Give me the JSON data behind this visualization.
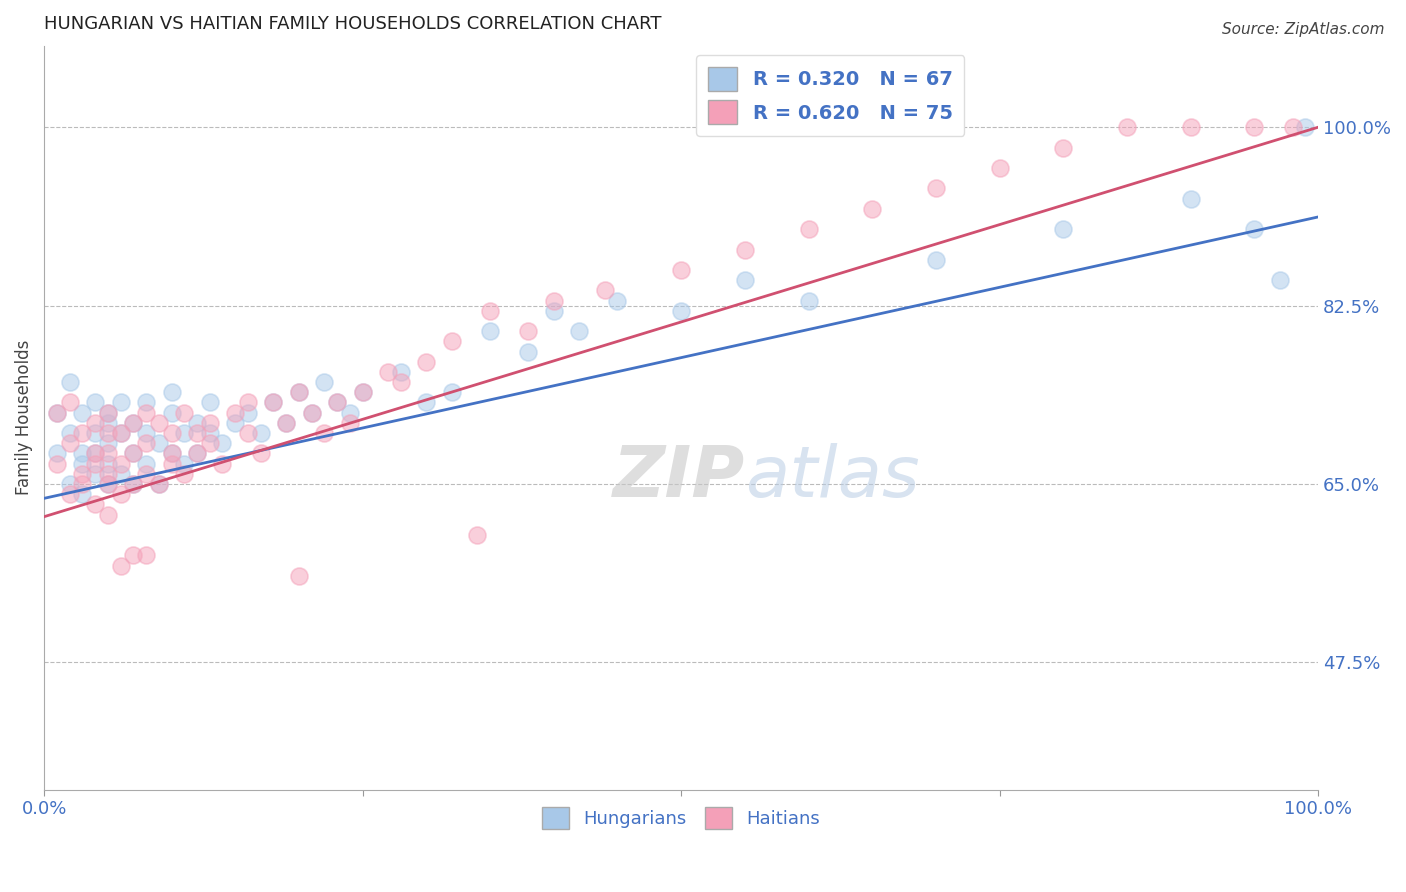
{
  "title": "HUNGARIAN VS HAITIAN FAMILY HOUSEHOLDS CORRELATION CHART",
  "source": "Source: ZipAtlas.com",
  "ylabel": "Family Households",
  "xlim": [
    0.0,
    1.0
  ],
  "ylim": [
    0.35,
    1.08
  ],
  "yticks": [
    0.475,
    0.65,
    0.825,
    1.0
  ],
  "ytick_labels": [
    "47.5%",
    "65.0%",
    "82.5%",
    "100.0%"
  ],
  "xticks": [
    0.0,
    0.25,
    0.5,
    0.75,
    1.0
  ],
  "blue_R": 0.32,
  "blue_N": 67,
  "pink_R": 0.62,
  "pink_N": 75,
  "blue_color": "#a8c8e8",
  "pink_color": "#f4a0b8",
  "blue_line_color": "#4472c4",
  "pink_line_color": "#d05070",
  "tick_label_color": "#4472c4",
  "title_color": "#222222",
  "watermark": "ZIPatlas",
  "background_color": "#ffffff",
  "blue_scatter_x": [
    0.01,
    0.01,
    0.02,
    0.02,
    0.02,
    0.03,
    0.03,
    0.03,
    0.03,
    0.04,
    0.04,
    0.04,
    0.04,
    0.05,
    0.05,
    0.05,
    0.05,
    0.05,
    0.06,
    0.06,
    0.06,
    0.07,
    0.07,
    0.07,
    0.08,
    0.08,
    0.08,
    0.09,
    0.09,
    0.1,
    0.1,
    0.1,
    0.11,
    0.11,
    0.12,
    0.12,
    0.13,
    0.13,
    0.14,
    0.15,
    0.16,
    0.17,
    0.18,
    0.19,
    0.2,
    0.21,
    0.22,
    0.23,
    0.24,
    0.25,
    0.28,
    0.3,
    0.32,
    0.35,
    0.38,
    0.4,
    0.42,
    0.45,
    0.5,
    0.55,
    0.6,
    0.7,
    0.8,
    0.9,
    0.95,
    0.97,
    0.99
  ],
  "blue_scatter_y": [
    0.68,
    0.72,
    0.65,
    0.7,
    0.75,
    0.67,
    0.72,
    0.68,
    0.64,
    0.7,
    0.66,
    0.73,
    0.68,
    0.71,
    0.67,
    0.65,
    0.69,
    0.72,
    0.7,
    0.66,
    0.73,
    0.68,
    0.71,
    0.65,
    0.7,
    0.67,
    0.73,
    0.69,
    0.65,
    0.72,
    0.68,
    0.74,
    0.7,
    0.67,
    0.71,
    0.68,
    0.73,
    0.7,
    0.69,
    0.71,
    0.72,
    0.7,
    0.73,
    0.71,
    0.74,
    0.72,
    0.75,
    0.73,
    0.72,
    0.74,
    0.76,
    0.73,
    0.74,
    0.8,
    0.78,
    0.82,
    0.8,
    0.83,
    0.82,
    0.85,
    0.83,
    0.87,
    0.9,
    0.93,
    0.9,
    0.85,
    1.0
  ],
  "pink_scatter_x": [
    0.01,
    0.01,
    0.02,
    0.02,
    0.02,
    0.03,
    0.03,
    0.03,
    0.04,
    0.04,
    0.04,
    0.04,
    0.05,
    0.05,
    0.05,
    0.05,
    0.05,
    0.06,
    0.06,
    0.06,
    0.07,
    0.07,
    0.07,
    0.08,
    0.08,
    0.08,
    0.09,
    0.09,
    0.1,
    0.1,
    0.1,
    0.11,
    0.11,
    0.12,
    0.12,
    0.13,
    0.13,
    0.14,
    0.15,
    0.16,
    0.17,
    0.18,
    0.19,
    0.2,
    0.21,
    0.22,
    0.23,
    0.24,
    0.25,
    0.27,
    0.28,
    0.3,
    0.32,
    0.35,
    0.38,
    0.4,
    0.44,
    0.5,
    0.55,
    0.6,
    0.65,
    0.7,
    0.75,
    0.8,
    0.85,
    0.9,
    0.95,
    0.98,
    0.34,
    0.2,
    0.16,
    0.08,
    0.07,
    0.06,
    0.05
  ],
  "pink_scatter_y": [
    0.67,
    0.72,
    0.64,
    0.69,
    0.73,
    0.66,
    0.7,
    0.65,
    0.68,
    0.63,
    0.71,
    0.67,
    0.65,
    0.7,
    0.66,
    0.72,
    0.68,
    0.64,
    0.7,
    0.67,
    0.65,
    0.71,
    0.68,
    0.66,
    0.72,
    0.69,
    0.65,
    0.71,
    0.67,
    0.7,
    0.68,
    0.72,
    0.66,
    0.7,
    0.68,
    0.71,
    0.69,
    0.67,
    0.72,
    0.7,
    0.68,
    0.73,
    0.71,
    0.74,
    0.72,
    0.7,
    0.73,
    0.71,
    0.74,
    0.76,
    0.75,
    0.77,
    0.79,
    0.82,
    0.8,
    0.83,
    0.84,
    0.86,
    0.88,
    0.9,
    0.92,
    0.94,
    0.96,
    0.98,
    1.0,
    1.0,
    1.0,
    1.0,
    0.6,
    0.56,
    0.73,
    0.58,
    0.58,
    0.57,
    0.62
  ],
  "blue_line_x": [
    0.0,
    1.0
  ],
  "blue_line_y": [
    0.636,
    0.912
  ],
  "pink_line_x": [
    0.0,
    1.0
  ],
  "pink_line_y": [
    0.618,
    1.0
  ]
}
